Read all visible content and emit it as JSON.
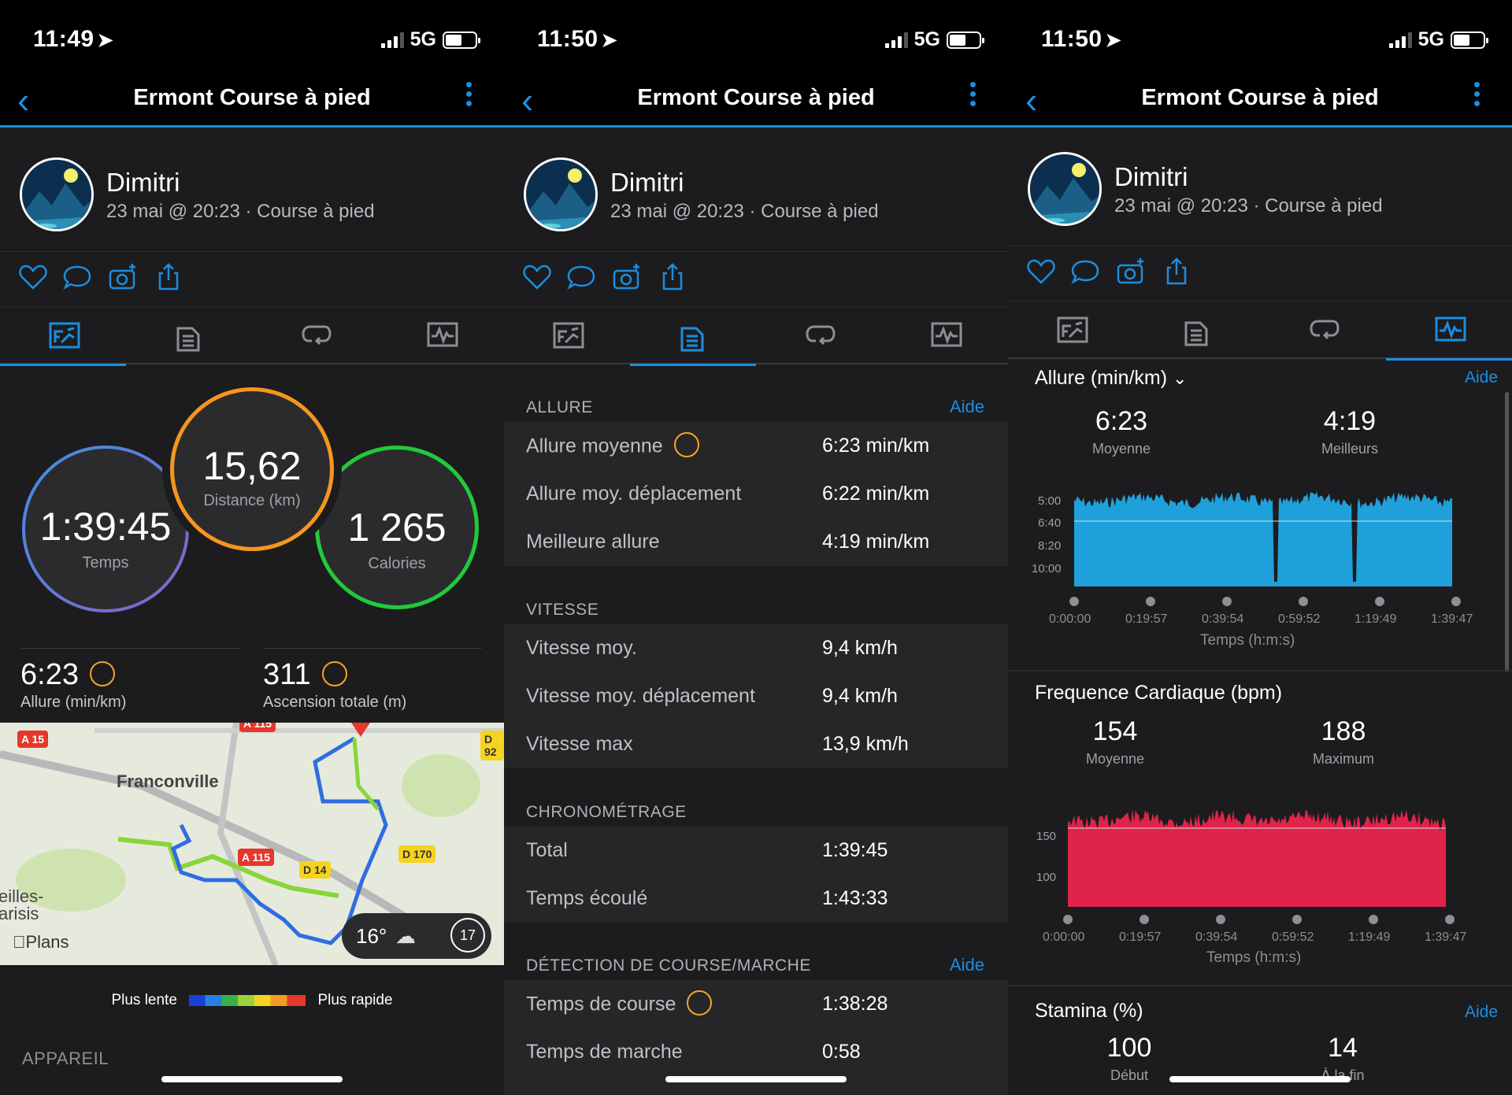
{
  "screens": [
    {
      "time": "11:49",
      "network": "5G",
      "title": "Ermont Course à pied"
    },
    {
      "time": "11:50",
      "network": "5G",
      "title": "Ermont Course à pied"
    },
    {
      "time": "11:50",
      "network": "5G",
      "title": "Ermont Course à pied"
    }
  ],
  "profile": {
    "name": "Dimitri",
    "subtitle": "23 mai @ 20:23 · Course à pied"
  },
  "summary": {
    "distance": {
      "value": "15,62",
      "label": "Distance (km)"
    },
    "time": {
      "value": "1:39:45",
      "label": "Temps"
    },
    "calories": {
      "value": "1 265",
      "label": "Calories"
    },
    "pace": {
      "value": "6:23",
      "label": "Allure (min/km)"
    },
    "ascent": {
      "value": "311",
      "label": "Ascension totale (m)"
    }
  },
  "map": {
    "labels": {
      "city": "Franconville",
      "city2a": "eilles-",
      "city2b": "arisis",
      "plans": "Plans"
    },
    "roads": [
      "A 15",
      "A 115",
      "D 14",
      "D 170",
      "A 115",
      "D 92"
    ],
    "weather": {
      "temp": "16°",
      "count": "17"
    }
  },
  "legend": {
    "slow": "Plus lente",
    "fast": "Plus rapide",
    "colors": [
      "#1a3fd6",
      "#2a7fe0",
      "#36b24a",
      "#9bd23a",
      "#f5d321",
      "#f59a23",
      "#e5372b"
    ]
  },
  "device_label": "APPAREIL",
  "stats": [
    {
      "header": "ALLURE",
      "help": "Aide",
      "rows": [
        {
          "k": "Allure moyenne",
          "v": "6:23 min/km",
          "badge": true
        },
        {
          "k": "Allure moy. déplacement",
          "v": "6:22 min/km"
        },
        {
          "k": "Meilleure allure",
          "v": "4:19 min/km"
        }
      ]
    },
    {
      "header": "VITESSE",
      "help": "",
      "rows": [
        {
          "k": "Vitesse moy.",
          "v": "9,4 km/h"
        },
        {
          "k": "Vitesse moy. déplacement",
          "v": "9,4 km/h"
        },
        {
          "k": "Vitesse max",
          "v": "13,9 km/h"
        }
      ]
    },
    {
      "header": "CHRONOMÉTRAGE",
      "help": "",
      "rows": [
        {
          "k": "Total",
          "v": "1:39:45"
        },
        {
          "k": "Temps écoulé",
          "v": "1:43:33"
        }
      ]
    },
    {
      "header": "DÉTECTION DE COURSE/MARCHE",
      "help": "Aide",
      "rows": [
        {
          "k": "Temps de course",
          "v": "1:38:28",
          "badge": true
        },
        {
          "k": "Temps de marche",
          "v": "0:58"
        }
      ]
    }
  ],
  "charts": {
    "pace": {
      "title": "Allure (min/km)",
      "help": "Aide",
      "avg": {
        "value": "6:23",
        "label": "Moyenne"
      },
      "best": {
        "value": "4:19",
        "label": "Meilleurs"
      },
      "yticks": [
        "5:00",
        "6:40",
        "8:20",
        "10:00"
      ],
      "xticks": [
        "0:00:00",
        "0:19:57",
        "0:39:54",
        "0:59:52",
        "1:19:49",
        "1:39:47"
      ],
      "xlabel": "Temps (h:m:s)",
      "color": "#1fa0db"
    },
    "hr": {
      "title": "Frequence Cardiaque (bpm)",
      "avg": {
        "value": "154",
        "label": "Moyenne"
      },
      "max": {
        "value": "188",
        "label": "Maximum"
      },
      "yticks": [
        "150",
        "100"
      ],
      "xticks": [
        "0:00:00",
        "0:19:57",
        "0:39:54",
        "0:59:52",
        "1:19:49",
        "1:39:47"
      ],
      "xlabel": "Temps (h:m:s)",
      "color": "#e0234a"
    },
    "stamina": {
      "title": "Stamina (%)",
      "help": "Aide",
      "start": {
        "value": "100",
        "label": "Début"
      },
      "end": {
        "value": "14",
        "label": "À la fin"
      }
    }
  }
}
